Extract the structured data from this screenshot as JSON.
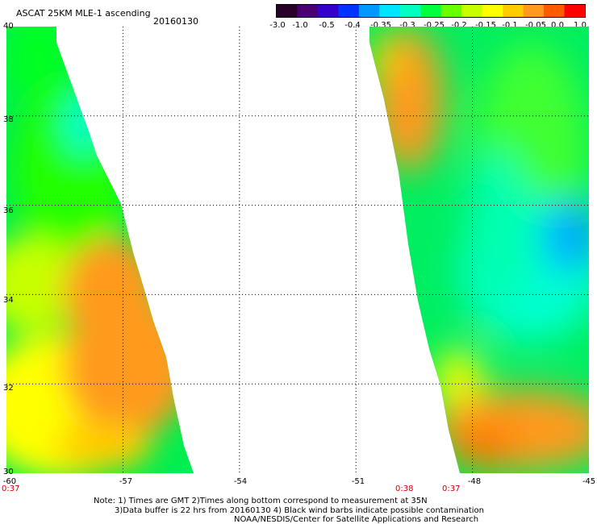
{
  "header": {
    "title": "ASCAT 25KM MLE-1 ascending",
    "date": "20160130"
  },
  "colorbar": {
    "ticks": [
      "-3.0",
      "-1.0",
      "-0.5",
      "-0.4",
      "-0.35",
      "-0.3",
      "-0.25",
      "-0.2",
      "-0.15",
      "-0.1",
      "-0.05",
      "0.0",
      "1.0"
    ],
    "colors": [
      "#280028",
      "#4a0070",
      "#3300cc",
      "#0033ff",
      "#0099ff",
      "#00e5ff",
      "#00ffc0",
      "#00ff40",
      "#6aff00",
      "#c8ff00",
      "#ffff00",
      "#ffcc00",
      "#ff9a1e",
      "#ff5a00",
      "#ff0000"
    ]
  },
  "map": {
    "lat_labels": [
      "40",
      "38",
      "36",
      "34",
      "32",
      "30"
    ],
    "lon_labels": [
      "-60",
      "-57",
      "-54",
      "-51",
      "-48",
      "-45"
    ],
    "time_labels": [
      "0:37",
      "0:38",
      "0:37"
    ],
    "lat_range": [
      30,
      40
    ],
    "lon_range": [
      -60,
      -45
    ]
  },
  "notes": {
    "line1": "Note: 1) Times are GMT 2)Times along bottom correspond to measurement at 35N",
    "line2": "3)Data buffer is 22 hrs from 20160130 4) Black wind barbs indicate possible contamination",
    "line3": "NOAA/NESDIS/Center for Satellite Applications and Research"
  }
}
